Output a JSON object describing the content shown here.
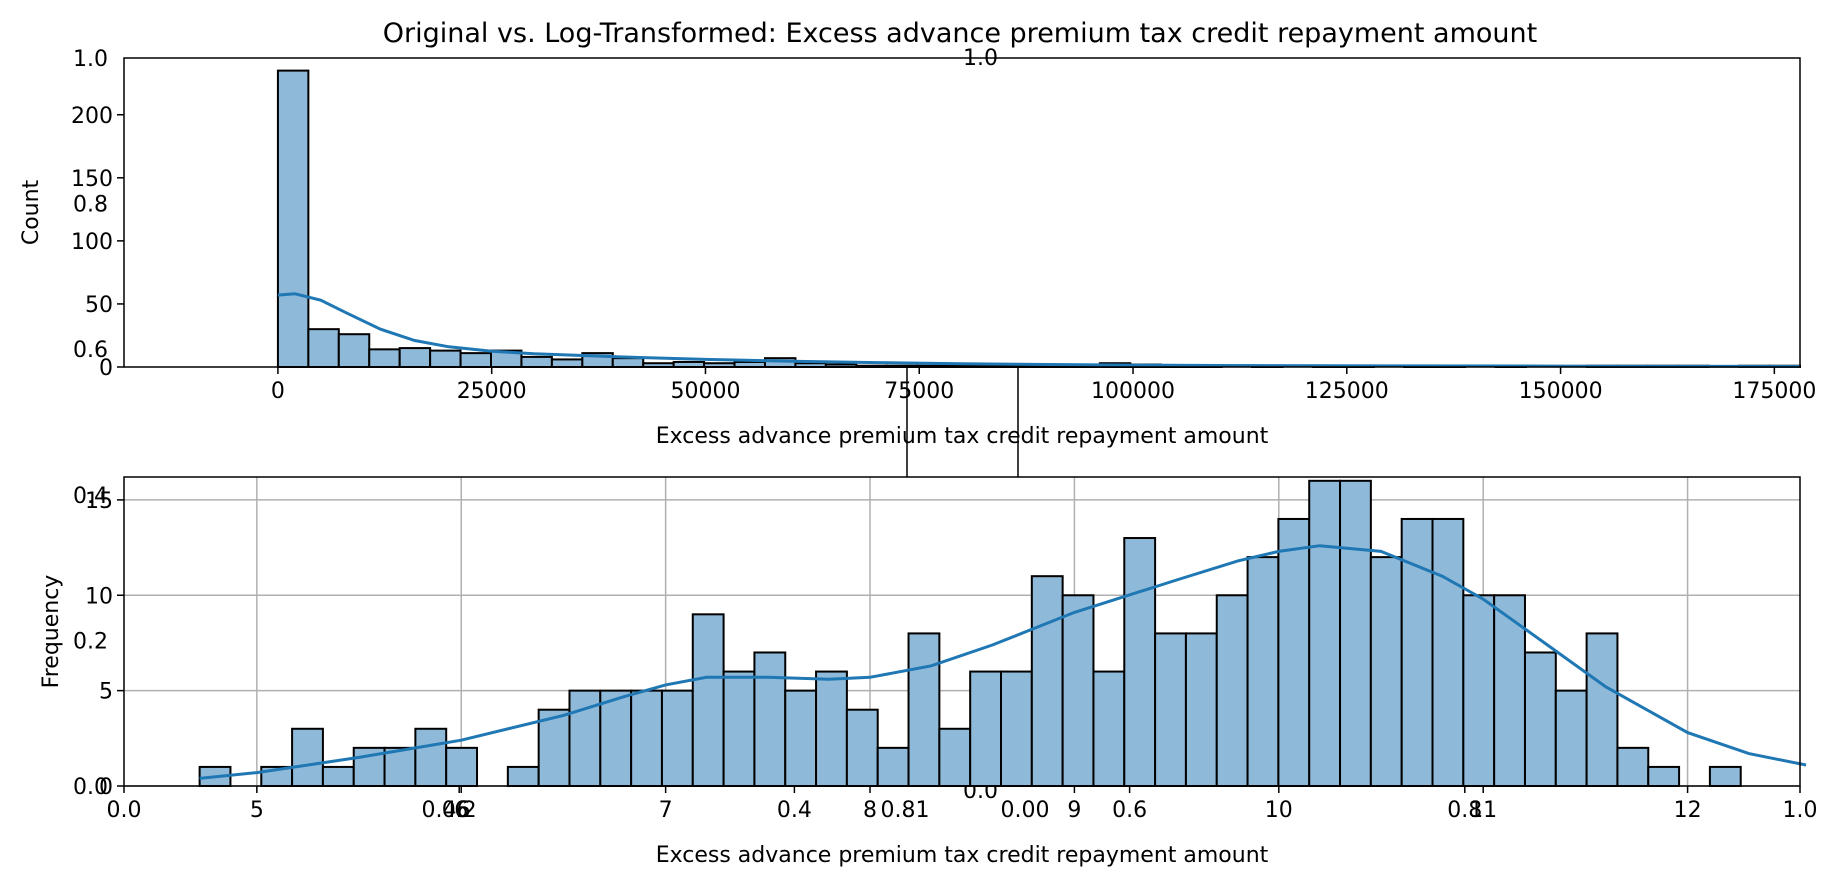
{
  "figure": {
    "title": "Original vs. Log-Transformed: Excess advance premium tax credit repayment amount",
    "bar_color": "#8fb9d9",
    "bar_edge_color": "#000000",
    "kde_color": "#1f77b4",
    "grid_color": "#b0b0b0"
  },
  "chart_data": [
    {
      "type": "bar",
      "panel": "top",
      "subtype": "histogram-with-kde",
      "xlabel": "Excess advance premium tax credit repayment amount",
      "ylabel": "Count",
      "xlim": [
        -18000,
        178000
      ],
      "ylim": [
        0,
        245
      ],
      "bin_start": 0,
      "bin_width": 3560,
      "counts": [
        235,
        30,
        26,
        14,
        15,
        13,
        11,
        13,
        8,
        6,
        11,
        7,
        3,
        4,
        3,
        4,
        7,
        3,
        2,
        1,
        1,
        1,
        1,
        1,
        1,
        1,
        1,
        3,
        2,
        1,
        1,
        0,
        1,
        0,
        1,
        1,
        0,
        1,
        1,
        0,
        1,
        0,
        0,
        1,
        1,
        1,
        1,
        0,
        1,
        1
      ],
      "x_ticks": [
        0,
        25000,
        50000,
        75000,
        100000,
        125000,
        150000,
        175000
      ],
      "y_ticks": [
        0,
        50,
        100,
        150,
        200
      ],
      "kde": {
        "x": [
          0,
          2000,
          5000,
          8000,
          12000,
          16000,
          20000,
          25000,
          30000,
          40000,
          50000,
          60000,
          70000,
          80000,
          90000,
          100000,
          110000,
          130000,
          150000,
          178000
        ],
        "y": [
          57,
          58,
          53,
          43,
          30,
          21,
          16,
          12.5,
          10.5,
          8,
          6,
          4.5,
          3.5,
          2.5,
          2,
          1.5,
          1.2,
          0.9,
          0.7,
          0.5
        ]
      },
      "grid": false
    },
    {
      "type": "bar",
      "panel": "bottom",
      "subtype": "histogram-with-kde",
      "xlabel": "Excess advance premium tax credit repayment amount",
      "ylabel": "Frequency",
      "xlim": [
        4.35,
        12.55
      ],
      "ylim": [
        0,
        16.2
      ],
      "bin_start": 4.72,
      "bin_width": 0.1508,
      "counts": [
        1,
        0,
        1,
        3,
        1,
        2,
        2,
        3,
        2,
        0,
        1,
        4,
        5,
        5,
        5,
        5,
        9,
        6,
        7,
        5,
        6,
        4,
        2,
        8,
        3,
        6,
        6,
        11,
        10,
        6,
        13,
        8,
        8,
        10,
        12,
        14,
        16,
        16,
        12,
        14,
        14,
        10,
        10,
        7,
        5,
        8,
        2,
        1,
        0,
        1
      ],
      "x_ticks": [
        5,
        6,
        7,
        8,
        9,
        10,
        11,
        12
      ],
      "y_ticks": [
        0,
        5,
        10,
        15
      ],
      "kde": {
        "x": [
          4.72,
          5.0,
          5.5,
          6.0,
          6.5,
          6.8,
          7.0,
          7.2,
          7.5,
          7.8,
          8.0,
          8.3,
          8.6,
          9.0,
          9.5,
          9.8,
          10.0,
          10.2,
          10.5,
          10.8,
          11.0,
          11.3,
          11.6,
          12.0,
          12.3,
          12.58
        ],
        "y": [
          0.4,
          0.7,
          1.5,
          2.4,
          3.7,
          4.7,
          5.3,
          5.7,
          5.7,
          5.6,
          5.7,
          6.3,
          7.4,
          9.1,
          10.8,
          11.8,
          12.3,
          12.6,
          12.3,
          11.0,
          9.8,
          7.5,
          5.2,
          2.8,
          1.7,
          1.1
        ]
      },
      "grid": true
    },
    {
      "type": "line",
      "panel": "background",
      "note_visible": "stray axis tick labels",
      "x_ticks": [
        "0.0",
        "0.2",
        "0.4",
        "0.6",
        "0.8",
        "1.0"
      ],
      "y_ticks": [
        "0.0",
        "0.2",
        "0.4",
        "0.6",
        "0.8",
        "1.0"
      ]
    },
    {
      "type": "line",
      "panel": "middle-small",
      "x_ticks": [
        "0.00",
        "0.46",
        "0.81",
        "1.0"
      ],
      "y_ticks": [
        "0.0",
        "1.0"
      ],
      "ylabel": "0.0"
    }
  ]
}
